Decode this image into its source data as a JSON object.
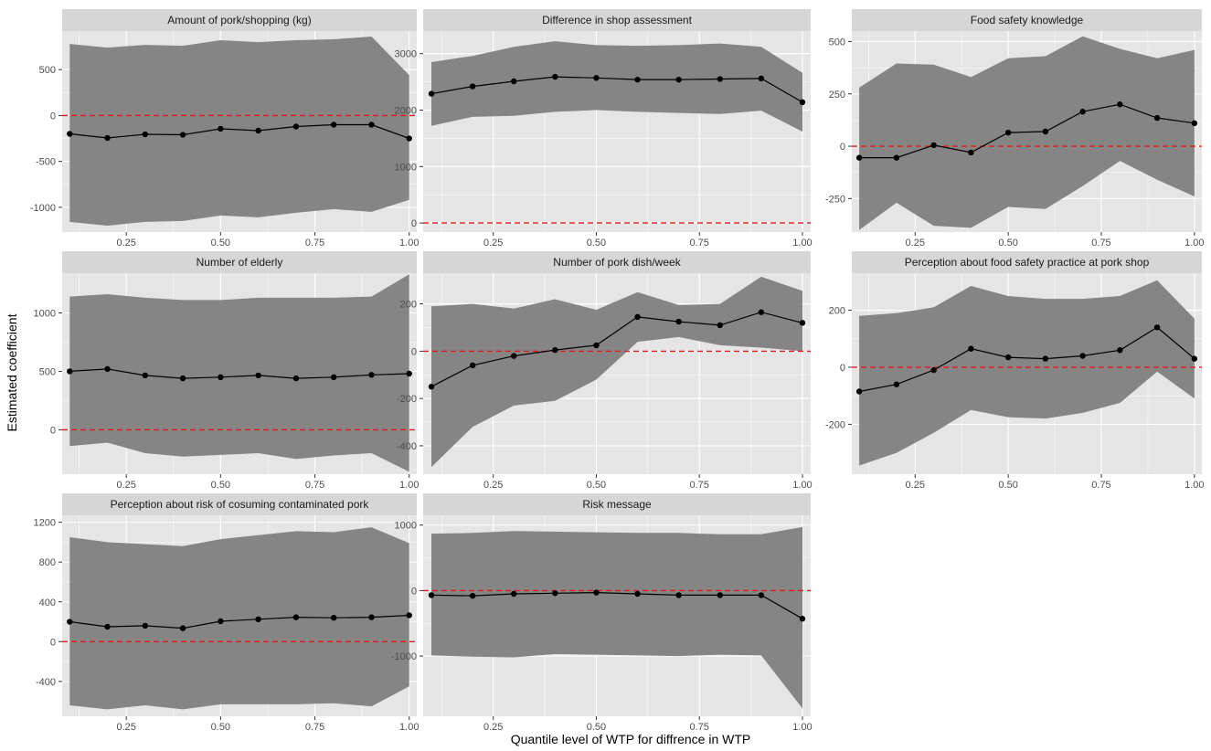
{
  "colors": {
    "panel_bg": "#e5e5e5",
    "strip_bg": "#d6d6d6",
    "grid": "#ffffff",
    "ribbon": "#7f7f7f",
    "line": "#000000",
    "ref_line": "#e31a1c"
  },
  "chart_data": {
    "type": "line",
    "xlabel": "Quantile level of WTP for diffrence in WTP",
    "ylabel": "Estimated coefficient",
    "x": [
      0.1,
      0.2,
      0.3,
      0.4,
      0.5,
      0.6,
      0.7,
      0.8,
      0.9,
      1.0
    ],
    "xlim": [
      0.08,
      1.02
    ],
    "x_ticks": [
      0.25,
      0.5,
      0.75,
      1.0
    ],
    "x_tick_labels": [
      "0.25",
      "0.50",
      "0.75",
      "1.00"
    ],
    "reference_line": 0,
    "facets": [
      {
        "title": "Amount of pork/shopping (kg)",
        "ylim": [
          -1270,
          920
        ],
        "y_ticks": [
          500,
          0,
          -500,
          -1000
        ],
        "y_tick_labels": [
          "500",
          "0",
          "-500",
          "-1000"
        ],
        "estimate": [
          -200,
          -245,
          -205,
          -210,
          -145,
          -165,
          -120,
          -100,
          -100,
          -250
        ],
        "lower": [
          -1160,
          -1200,
          -1160,
          -1150,
          -1090,
          -1110,
          -1060,
          -1020,
          -1050,
          -920
        ],
        "upper": [
          780,
          740,
          770,
          760,
          820,
          800,
          820,
          830,
          860,
          440
        ]
      },
      {
        "title": "Difference in shop assessment",
        "ylim": [
          -160,
          3400
        ],
        "y_ticks": [
          3000,
          2000,
          1000,
          0
        ],
        "y_tick_labels": [
          "3000",
          "2000",
          "1000",
          "0"
        ],
        "estimate": [
          2290,
          2420,
          2510,
          2590,
          2570,
          2540,
          2540,
          2550,
          2560,
          2140
        ],
        "lower": [
          1720,
          1880,
          1900,
          1970,
          2000,
          1970,
          1950,
          1930,
          1990,
          1620
        ],
        "upper": [
          2850,
          2960,
          3120,
          3220,
          3150,
          3140,
          3150,
          3180,
          3120,
          2660
        ]
      },
      {
        "title": "Food safety knowledge",
        "ylim": [
          -410,
          550
        ],
        "y_ticks": [
          500,
          250,
          0,
          -250
        ],
        "y_tick_labels": [
          "500",
          "250",
          "0",
          "-250"
        ],
        "estimate": [
          -55,
          -55,
          5,
          -30,
          65,
          70,
          165,
          200,
          135,
          110
        ],
        "lower": [
          -400,
          -270,
          -380,
          -390,
          -290,
          -300,
          -190,
          -70,
          -160,
          -240
        ],
        "upper": [
          280,
          395,
          390,
          330,
          420,
          430,
          525,
          465,
          420,
          460
        ]
      },
      {
        "title": "Number of elderly",
        "ylim": [
          -380,
          1340
        ],
        "y_ticks": [
          1000,
          500,
          0
        ],
        "y_tick_labels": [
          "1000",
          "500",
          "0"
        ],
        "estimate": [
          500,
          520,
          465,
          440,
          450,
          465,
          440,
          450,
          470,
          480
        ],
        "lower": [
          -140,
          -110,
          -200,
          -230,
          -215,
          -200,
          -250,
          -220,
          -200,
          -360
        ],
        "upper": [
          1140,
          1160,
          1130,
          1110,
          1110,
          1130,
          1130,
          1130,
          1140,
          1330
        ]
      },
      {
        "title": "Number of pork dish/week",
        "ylim": [
          -520,
          330
        ],
        "y_ticks": [
          200,
          0,
          -200,
          -400
        ],
        "y_tick_labels": [
          "200",
          "0",
          "-200",
          "-400"
        ],
        "estimate": [
          -150,
          -60,
          -20,
          5,
          25,
          145,
          125,
          110,
          165,
          120
        ],
        "lower": [
          -490,
          -320,
          -230,
          -210,
          -120,
          40,
          60,
          25,
          15,
          0
        ],
        "upper": [
          190,
          200,
          180,
          220,
          175,
          250,
          195,
          200,
          315,
          255
        ]
      },
      {
        "title": "Perception about food safety practice at pork shop",
        "ylim": [
          -375,
          330
        ],
        "y_ticks": [
          200,
          0,
          -200
        ],
        "y_tick_labels": [
          "200",
          "0",
          "-200"
        ],
        "estimate": [
          -85,
          -60,
          -10,
          65,
          35,
          30,
          40,
          60,
          140,
          30
        ],
        "lower": [
          -345,
          -300,
          -230,
          -150,
          -175,
          -180,
          -160,
          -125,
          -15,
          -110
        ],
        "upper": [
          180,
          190,
          210,
          285,
          250,
          240,
          240,
          250,
          305,
          170
        ]
      },
      {
        "title": "Perception about risk of cosuming contaminated pork",
        "ylim": [
          -750,
          1270
        ],
        "y_ticks": [
          1200,
          800,
          400,
          0,
          -400
        ],
        "y_tick_labels": [
          "1200",
          "800",
          "400",
          "0",
          "-400"
        ],
        "estimate": [
          200,
          150,
          160,
          135,
          205,
          225,
          245,
          240,
          245,
          265
        ],
        "lower": [
          -640,
          -680,
          -640,
          -680,
          -630,
          -630,
          -630,
          -620,
          -650,
          -450
        ],
        "upper": [
          1050,
          1000,
          980,
          960,
          1030,
          1070,
          1110,
          1100,
          1150,
          990
        ]
      },
      {
        "title": "Risk message",
        "ylim": [
          -1920,
          1150
        ],
        "y_ticks": [
          1000,
          0,
          -1000
        ],
        "y_tick_labels": [
          "1000",
          "0",
          "-1000"
        ],
        "estimate": [
          -70,
          -80,
          -50,
          -40,
          -30,
          -50,
          -70,
          -70,
          -70,
          -430
        ],
        "lower": [
          -990,
          -1010,
          -1020,
          -970,
          -980,
          -990,
          -1000,
          -980,
          -990,
          -1800
        ],
        "upper": [
          870,
          880,
          910,
          900,
          890,
          880,
          880,
          860,
          860,
          970
        ]
      }
    ]
  }
}
